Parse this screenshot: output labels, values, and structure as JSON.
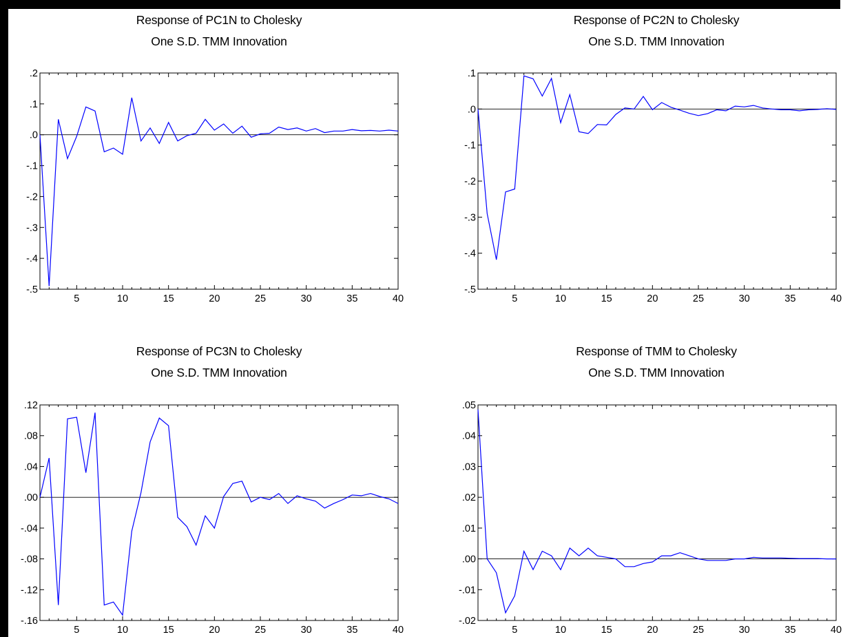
{
  "chart_data": [
    {
      "type": "line",
      "title": [
        "Response of PC1N to Cholesky",
        "One S.D. TMM Innovation"
      ],
      "xlim": [
        1,
        40
      ],
      "ylim": [
        -0.5,
        0.2
      ],
      "xticks": [
        5,
        10,
        15,
        20,
        25,
        30,
        35,
        40
      ],
      "xtick_labels": [
        "5",
        "10",
        "15",
        "20",
        "25",
        "30",
        "35",
        "40"
      ],
      "yticks": [
        0.2,
        0.1,
        0.0,
        -0.1,
        -0.2,
        -0.3,
        -0.4,
        -0.5
      ],
      "ytick_labels": [
        ".2",
        ".1",
        ".0",
        "-.1",
        "-.2",
        "-.3",
        "-.4",
        "-.5"
      ],
      "zero_line": true,
      "line_color": "#0000ff",
      "x": [
        1,
        2,
        3,
        4,
        5,
        6,
        7,
        8,
        9,
        10,
        11,
        12,
        13,
        14,
        15,
        16,
        17,
        18,
        19,
        20,
        21,
        22,
        23,
        24,
        25,
        26,
        27,
        28,
        29,
        30,
        31,
        32,
        33,
        34,
        35,
        36,
        37,
        38,
        39,
        40
      ],
      "values": [
        0.0,
        -0.49,
        0.05,
        -0.077,
        -0.005,
        0.09,
        0.077,
        -0.055,
        -0.043,
        -0.063,
        0.12,
        -0.02,
        0.022,
        -0.028,
        0.04,
        -0.02,
        -0.003,
        0.005,
        0.05,
        0.015,
        0.035,
        0.005,
        0.028,
        -0.008,
        0.003,
        0.005,
        0.025,
        0.017,
        0.022,
        0.012,
        0.02,
        0.007,
        0.012,
        0.012,
        0.017,
        0.013,
        0.014,
        0.012,
        0.015,
        0.012
      ]
    },
    {
      "type": "line",
      "title": [
        "Response of PC2N to Cholesky",
        "One S.D. TMM Innovation"
      ],
      "xlim": [
        1,
        40
      ],
      "ylim": [
        -0.5,
        0.1
      ],
      "xticks": [
        5,
        10,
        15,
        20,
        25,
        30,
        35,
        40
      ],
      "xtick_labels": [
        "5",
        "10",
        "15",
        "20",
        "25",
        "30",
        "35",
        "40"
      ],
      "yticks": [
        0.1,
        0.0,
        -0.1,
        -0.2,
        -0.3,
        -0.4,
        -0.5
      ],
      "ytick_labels": [
        ".1",
        ".0",
        "-.1",
        "-.2",
        "-.3",
        "-.4",
        "-.5"
      ],
      "zero_line": true,
      "line_color": "#0000ff",
      "x": [
        1,
        2,
        3,
        4,
        5,
        6,
        7,
        8,
        9,
        10,
        11,
        12,
        13,
        14,
        15,
        16,
        17,
        18,
        19,
        20,
        21,
        22,
        23,
        24,
        25,
        26,
        27,
        28,
        29,
        30,
        31,
        32,
        33,
        34,
        35,
        36,
        37,
        38,
        39,
        40
      ],
      "values": [
        0.0,
        -0.29,
        -0.418,
        -0.23,
        -0.222,
        0.092,
        0.084,
        0.036,
        0.085,
        -0.038,
        0.04,
        -0.063,
        -0.068,
        -0.043,
        -0.044,
        -0.015,
        0.003,
        0.0,
        0.035,
        -0.002,
        0.018,
        0.005,
        -0.003,
        -0.012,
        -0.018,
        -0.013,
        -0.002,
        -0.005,
        0.008,
        0.006,
        0.01,
        0.003,
        0.0,
        -0.002,
        -0.002,
        -0.005,
        -0.002,
        -0.001,
        0.001,
        -0.001
      ]
    },
    {
      "type": "line",
      "title": [
        "Response of PC3N to Cholesky",
        "One S.D. TMM Innovation"
      ],
      "xlim": [
        1,
        40
      ],
      "ylim": [
        -0.16,
        0.12
      ],
      "xticks": [
        5,
        10,
        15,
        20,
        25,
        30,
        35,
        40
      ],
      "xtick_labels": [
        "5",
        "10",
        "15",
        "20",
        "25",
        "30",
        "35",
        "40"
      ],
      "yticks": [
        0.12,
        0.08,
        0.04,
        0.0,
        -0.04,
        -0.08,
        -0.12,
        -0.16
      ],
      "ytick_labels": [
        ".12",
        ".08",
        ".04",
        ".00",
        "-.04",
        "-.08",
        "-.12",
        "-.16"
      ],
      "zero_line": true,
      "line_color": "#0000ff",
      "x": [
        1,
        2,
        3,
        4,
        5,
        6,
        7,
        8,
        9,
        10,
        11,
        12,
        13,
        14,
        15,
        16,
        17,
        18,
        19,
        20,
        21,
        22,
        23,
        24,
        25,
        26,
        27,
        28,
        29,
        30,
        31,
        32,
        33,
        34,
        35,
        36,
        37,
        38,
        39,
        40
      ],
      "values": [
        0.0,
        0.051,
        -0.14,
        0.102,
        0.104,
        0.032,
        0.11,
        -0.14,
        -0.136,
        -0.153,
        -0.044,
        0.006,
        0.072,
        0.103,
        0.093,
        -0.026,
        -0.038,
        -0.062,
        -0.024,
        -0.04,
        0.001,
        0.018,
        0.021,
        -0.006,
        0.0,
        -0.003,
        0.005,
        -0.008,
        0.002,
        -0.002,
        -0.005,
        -0.014,
        -0.008,
        -0.003,
        0.003,
        0.002,
        0.005,
        0.001,
        -0.002,
        -0.008
      ]
    },
    {
      "type": "line",
      "title": [
        "Response of TMM to Cholesky",
        "One S.D. TMM Innovation"
      ],
      "xlim": [
        1,
        40
      ],
      "ylim": [
        -0.02,
        0.05
      ],
      "xticks": [
        5,
        10,
        15,
        20,
        25,
        30,
        35,
        40
      ],
      "xtick_labels": [
        "5",
        "10",
        "15",
        "20",
        "25",
        "30",
        "35",
        "40"
      ],
      "yticks": [
        0.05,
        0.04,
        0.03,
        0.02,
        0.01,
        0.0,
        -0.01,
        -0.02
      ],
      "ytick_labels": [
        ".05",
        ".04",
        ".03",
        ".02",
        ".01",
        ".00",
        "-.01",
        "-.02"
      ],
      "zero_line": true,
      "line_color": "#0000ff",
      "x": [
        1,
        2,
        3,
        4,
        5,
        6,
        7,
        8,
        9,
        10,
        11,
        12,
        13,
        14,
        15,
        16,
        17,
        18,
        19,
        20,
        21,
        22,
        23,
        24,
        25,
        26,
        27,
        28,
        29,
        30,
        31,
        32,
        33,
        34,
        35,
        36,
        37,
        38,
        39,
        40
      ],
      "values": [
        0.0485,
        0.0,
        -0.0045,
        -0.0175,
        -0.012,
        0.0025,
        -0.0035,
        0.0025,
        0.001,
        -0.0035,
        0.0035,
        0.001,
        0.0035,
        0.001,
        0.0005,
        0.0,
        -0.0025,
        -0.0025,
        -0.0015,
        -0.001,
        0.001,
        0.001,
        0.002,
        0.001,
        0.0,
        -0.0005,
        -0.0005,
        -0.0005,
        0.0,
        0.0,
        0.0005,
        0.0003,
        0.0003,
        0.0003,
        0.0002,
        0.0001,
        0.0001,
        0.0001,
        0.0,
        0.0
      ]
    }
  ]
}
